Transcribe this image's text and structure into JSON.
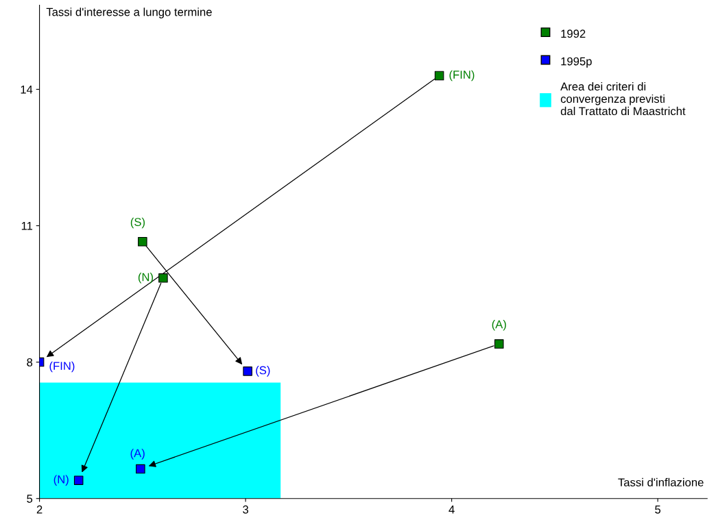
{
  "chart_data": {
    "type": "scatter",
    "xlabel": "Tassi d'inflazione",
    "ylabel": "Tassi d'interesse a lungo termine",
    "xlim": [
      2,
      5.24
    ],
    "xticks": [
      2,
      3,
      4,
      5
    ],
    "ylim": [
      5,
      15.85
    ],
    "yticks": [
      5,
      8,
      11,
      14
    ],
    "grid": false,
    "legend": "top right",
    "series": [
      {
        "type": "area",
        "name": "Area dei criteri di\nconvergenza previsti\ndal Trattato di Maastricht",
        "color": "#00ffff",
        "x": [
          2,
          3.17
        ],
        "values": [
          7.55,
          7.55
        ]
      },
      {
        "name": "1992",
        "marker": "square",
        "color": "#008000",
        "x": [
          3.94,
          2.5,
          2.6,
          4.23
        ],
        "values": [
          14.3,
          10.65,
          9.85,
          8.4
        ],
        "value_labels": [
          "(FIN)",
          "(S)",
          "(N)",
          "(A)"
        ]
      },
      {
        "name": "1995p",
        "marker": "square",
        "color": "#0000ff",
        "x": [
          2.0,
          3.01,
          2.19,
          2.49
        ],
        "values": [
          8.0,
          7.8,
          5.4,
          5.65
        ],
        "value_labels": [
          "(FIN)",
          "(S)",
          "(N)",
          "(A)"
        ]
      }
    ]
  }
}
